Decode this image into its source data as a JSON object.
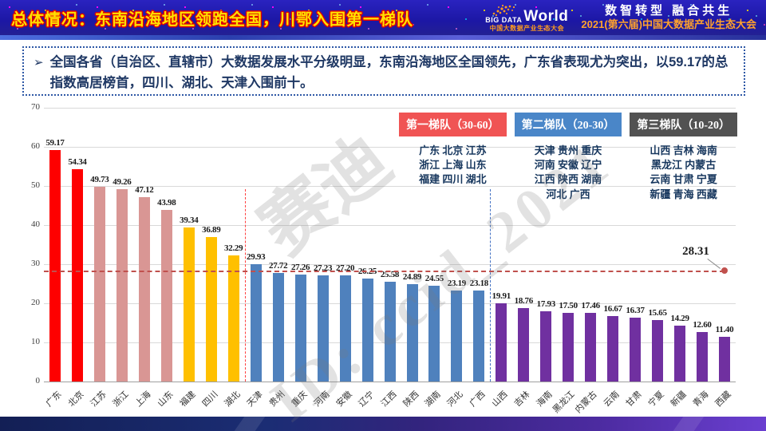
{
  "header": {
    "title": "总体情况：东南沿海地区领跑全国，川鄂入围第一梯队",
    "logo": {
      "big_data": "BIG DATA",
      "world": "World",
      "subtitle": "中国大数据产业生态大会"
    },
    "slogan": "数智转型 融合共生",
    "conference": "2021(第六届)中国大数据产业生态大会"
  },
  "summary": {
    "bullet": "➢",
    "text": "全国各省（自治区、直辖市）大数据发展水平分级明显，东南沿海地区全国领先，广东省表现尤为突出，以59.17的总指数高居榜首，四川、湖北、天津入围前十。"
  },
  "legend": {
    "tiers": [
      {
        "label": "第一梯队（30-60）",
        "color": "#f05454",
        "members": "广东 北京 江苏\n浙江 上海 山东\n福建 四川 湖北"
      },
      {
        "label": "第二梯队（20-30）",
        "color": "#4a86c8",
        "members": "天津 贵州 重庆\n河南 安徽 辽宁\n江西 陕西 湖南\n河北 广西"
      },
      {
        "label": "第三梯队（10-20）",
        "color": "#525252",
        "members": "山西 吉林 海南\n黑龙江 内蒙古\n云南 甘肃 宁夏\n新疆 青海 西藏"
      }
    ]
  },
  "chart_data": {
    "type": "bar",
    "title": "",
    "xlabel": "",
    "ylabel": "",
    "categories": [
      "广东",
      "北京",
      "江苏",
      "浙江",
      "上海",
      "山东",
      "福建",
      "四川",
      "湖北",
      "天津",
      "贵州",
      "重庆",
      "河南",
      "安徽",
      "辽宁",
      "江西",
      "陕西",
      "湖南",
      "河北",
      "广西",
      "山西",
      "吉林",
      "海南",
      "黑龙江",
      "内蒙古",
      "云南",
      "甘肃",
      "宁夏",
      "新疆",
      "青海",
      "西藏"
    ],
    "values": [
      59.17,
      54.34,
      49.73,
      49.26,
      47.12,
      43.98,
      39.34,
      36.89,
      32.29,
      29.93,
      27.72,
      27.26,
      27.23,
      27.2,
      26.25,
      25.58,
      24.89,
      24.55,
      23.19,
      23.18,
      19.91,
      18.76,
      17.93,
      17.5,
      17.46,
      16.67,
      16.37,
      15.65,
      14.29,
      12.6,
      11.4
    ],
    "ylim": [
      0,
      70
    ],
    "yticks": [
      0,
      10,
      20,
      30,
      40,
      50,
      60,
      70
    ],
    "grid": true,
    "legend_position": "top-right",
    "color_groups": [
      {
        "count": 2,
        "color": "#fe0000"
      },
      {
        "count": 4,
        "color": "#d99694"
      },
      {
        "count": 3,
        "color": "#ffc000"
      },
      {
        "count": 11,
        "color": "#4f81bd"
      },
      {
        "count": 11,
        "color": "#7030a0"
      }
    ],
    "average": 28.31,
    "average_label": "28.31",
    "average_line_color": "#c0504d",
    "dividers": [
      {
        "after_index": 9,
        "color": "#ff4040"
      },
      {
        "after_index": 20,
        "color": "#4472c4"
      }
    ]
  },
  "watermarks": {
    "wm1": "赛迪",
    "wm2": "ID: ccid_2021"
  },
  "colors": {
    "tier_text": "#17375e",
    "summary_text": "#1f3864",
    "header_bg": "#1f1ab0",
    "title_fill": "#ffe100",
    "title_outline": "#e00000"
  }
}
